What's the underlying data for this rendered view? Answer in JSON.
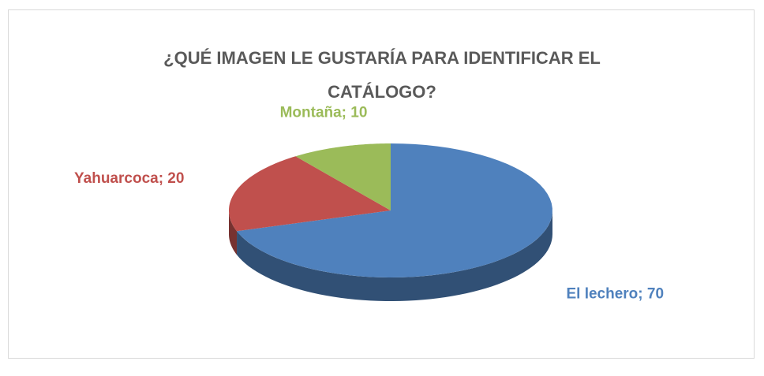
{
  "chart_data": {
    "type": "pie3d",
    "title": "¿QUÉ IMAGEN LE GUSTARÍA PARA IDENTIFICAR EL CATÁLOGO?",
    "values": [
      70,
      20,
      10
    ],
    "value_labels": [
      "El lechero; 70",
      "Yahuarcoca; 20",
      "Montaña; 10"
    ],
    "colors": [
      "#4f81bd",
      "#c0504d",
      "#9bbb59"
    ]
  }
}
